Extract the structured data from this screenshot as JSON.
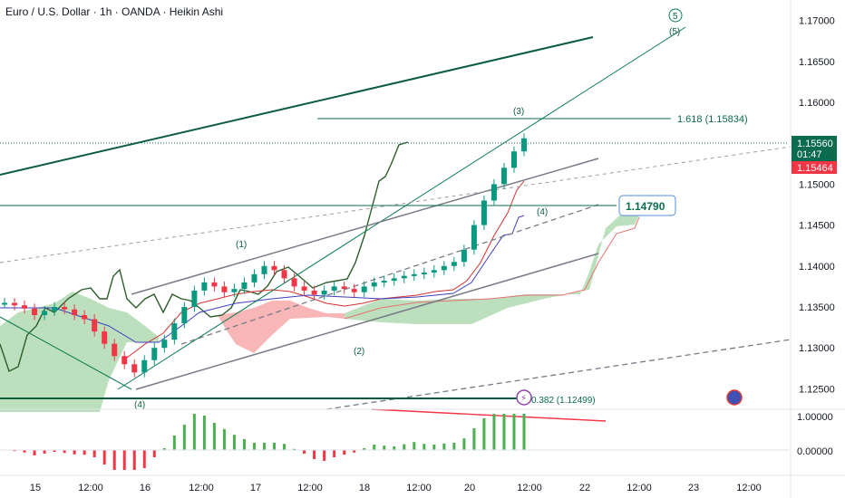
{
  "title": "Euro / U.S. Dollar · 1h · OANDA · Heikin Ashi",
  "colors": {
    "bull": "#089981",
    "bear": "#f23645",
    "trend_dark": "#0b5d3b",
    "channel": "#787b86",
    "cloud_green": "#a5d6a7",
    "cloud_red": "#f7a9a9",
    "price_tag": "#0b6b4f",
    "red_tag": "#f23645"
  },
  "price_axis": {
    "labels": [
      "1.17000",
      "1.16500",
      "1.16000",
      "1.15500",
      "1.15000",
      "1.14500",
      "1.14000",
      "1.13500",
      "1.13000",
      "1.12500"
    ],
    "current_price": "1.15560",
    "countdown": "01:47",
    "red_price": "1.15464"
  },
  "oscillator_axis": {
    "labels": [
      "1.00000",
      "0.00000"
    ]
  },
  "time_axis": {
    "labels": [
      "15",
      "12:00",
      "16",
      "12:00",
      "17",
      "12:00",
      "18",
      "12:00",
      "20",
      "12:00",
      "22",
      "12:00",
      "23",
      "12:00"
    ]
  },
  "annotations": {
    "fib_1618": "1.618 (1.15834)",
    "fib_0382": "0.382 (1.12499)",
    "level_box": "1.14790",
    "wave_1": "(1)",
    "wave_2": "(2)",
    "wave_3": "(3)",
    "wave_4_top": "(4)",
    "wave_4_bottom": "(4)",
    "wave_5": "(5)",
    "wave_5_circle": "5"
  },
  "chart_data": {
    "type": "line",
    "title": "Euro / U.S. Dollar · 1h · OANDA · Heikin Ashi",
    "xlabel": "",
    "ylabel": "",
    "ylim": [
      1.1225,
      1.1725
    ],
    "x_ticks": [
      "15",
      "12:00",
      "16",
      "12:00",
      "17",
      "12:00",
      "18",
      "12:00",
      "20",
      "12:00",
      "22",
      "12:00",
      "23",
      "12:00"
    ],
    "series": [
      {
        "values": [
          1.1355,
          1.1352,
          1.1348,
          1.134,
          1.1345,
          1.135,
          1.1347,
          1.134,
          1.1335,
          1.132,
          1.1305,
          1.129,
          1.128,
          1.127,
          1.1285,
          1.13,
          1.131,
          1.133,
          1.135,
          1.137,
          1.138,
          1.1375,
          1.1368,
          1.1372,
          1.138,
          1.139,
          1.14,
          1.1395,
          1.1385,
          1.1375,
          1.137,
          1.1365,
          1.137,
          1.1375,
          1.1372,
          1.1368,
          1.1375,
          1.138,
          1.1382,
          1.1385,
          1.1388,
          1.139,
          1.1392,
          1.1395,
          1.14,
          1.1405,
          1.142,
          1.145,
          1.148,
          1.15,
          1.152,
          1.154,
          1.1556
        ]
      }
    ],
    "horizontal_levels": [
      1.15834,
      1.1479,
      1.12499
    ],
    "current_price": 1.1556
  }
}
